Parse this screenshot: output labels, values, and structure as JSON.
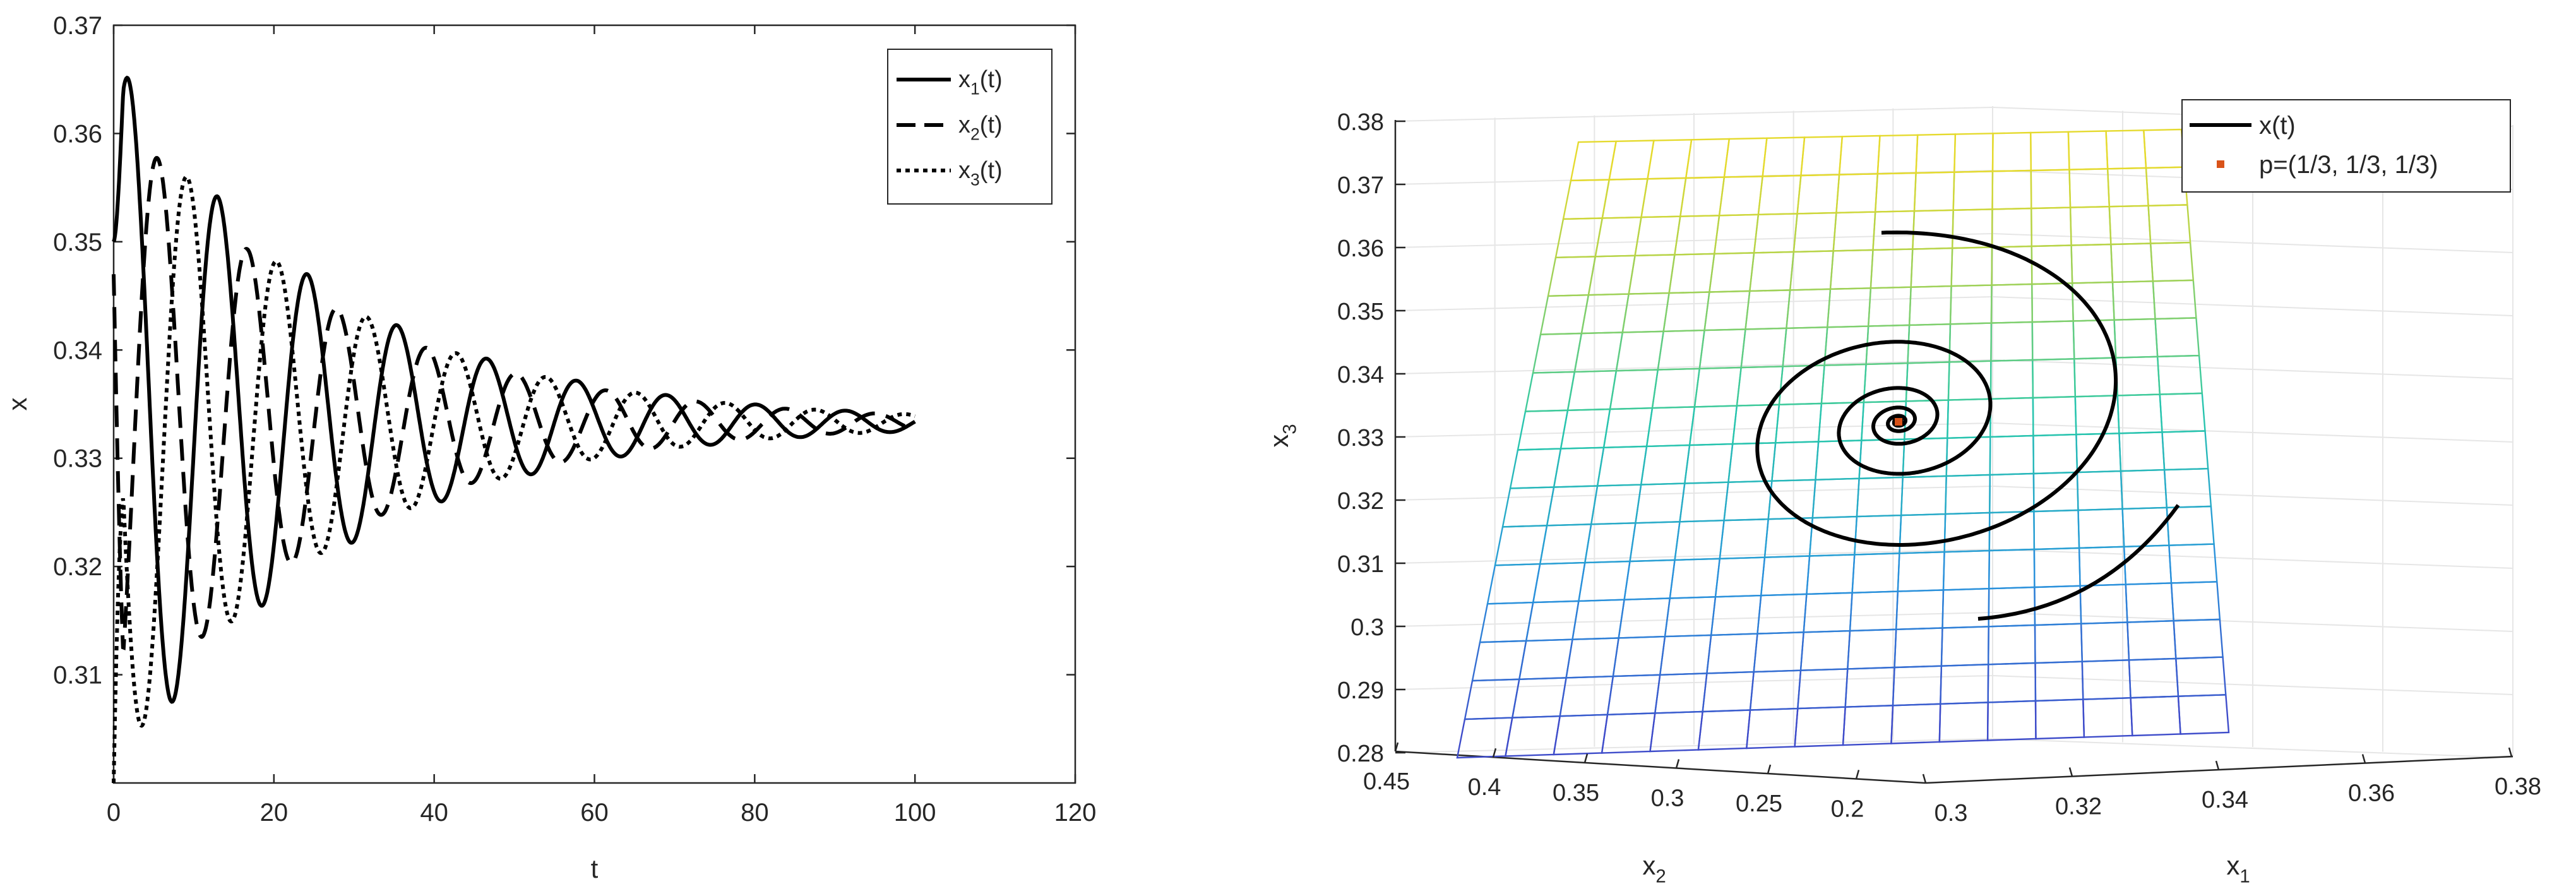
{
  "colors": {
    "axis": "#262626",
    "grid": "#e6e6e6",
    "line": "#000000",
    "point": "#d95319"
  },
  "chart_data": [
    {
      "type": "line",
      "xlabel": "t",
      "ylabel": "x",
      "xlim": [
        0,
        120
      ],
      "ylim": [
        0.3,
        0.37
      ],
      "xticks": [
        "0",
        "20",
        "40",
        "60",
        "80",
        "100",
        "120"
      ],
      "yticks": [
        "0.31",
        "0.32",
        "0.33",
        "0.34",
        "0.35",
        "0.36",
        "0.37"
      ],
      "grid": false,
      "legend_position": "top-right",
      "legend": [
        {
          "base": "x",
          "sub": "1",
          "rest": "(t)",
          "style": "solid"
        },
        {
          "base": "x",
          "sub": "2",
          "rest": "(t)",
          "style": "dashed"
        },
        {
          "base": "x",
          "sub": "3",
          "rest": "(t)",
          "style": "dotted"
        }
      ],
      "series": [
        {
          "style": "solid",
          "x0": 0.35,
          "equilibrium": 0.3333,
          "amplitude": 0.034,
          "decay": 0.0376,
          "period": 11.2,
          "phase_days": 1.8,
          "t_end": 100
        },
        {
          "style": "dashed",
          "x0": 0.347,
          "equilibrium": 0.3333,
          "amplitude": 0.03,
          "decay": 0.0376,
          "period": 11.2,
          "phase_days": 5.5,
          "t_end": 100
        },
        {
          "style": "dotted",
          "x0": 0.3,
          "equilibrium": 0.3333,
          "amplitude": 0.032,
          "decay": 0.0376,
          "period": 11.2,
          "phase_days": 9.2,
          "t_end": 100
        }
      ]
    },
    {
      "type": "line3d",
      "xlabel": {
        "base": "x",
        "sub": "1"
      },
      "ylabel": {
        "base": "x",
        "sub": "2"
      },
      "zlabel": {
        "base": "x",
        "sub": "3"
      },
      "x1lim": [
        0.3,
        0.38
      ],
      "x2lim": [
        0.2,
        0.45
      ],
      "zlim": [
        0.28,
        0.38
      ],
      "x1ticks": [
        "0.3",
        "0.32",
        "0.34",
        "0.36",
        "0.38"
      ],
      "x2ticks": [
        "0.45",
        "0.4",
        "0.35",
        "0.3",
        "0.25",
        "0.2"
      ],
      "zticks": [
        "0.28",
        "0.29",
        "0.3",
        "0.31",
        "0.32",
        "0.33",
        "0.34",
        "0.35",
        "0.36",
        "0.37",
        "0.38"
      ],
      "surface": "x1 + x2 + x3 = 1",
      "grid": true,
      "legend_position": "top-right",
      "legend": [
        {
          "label": "x(t)",
          "style": "line"
        },
        {
          "label": "p=(1/3, 1/3, 1/3)",
          "style": "marker"
        }
      ],
      "equilibrium_point": {
        "x1": 0.3333,
        "x2": 0.3333,
        "x3": 0.3333
      },
      "trajectory_start": {
        "x1": 0.3367,
        "x2": 0.3633,
        "x3": 0.3
      },
      "trajectory_end": {
        "x1": 0.3333,
        "x2": 0.3333,
        "x3": 0.3333
      }
    }
  ]
}
